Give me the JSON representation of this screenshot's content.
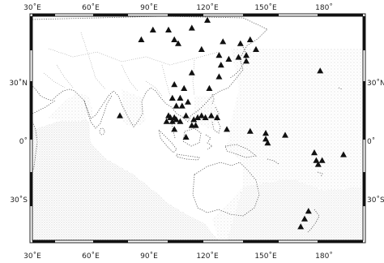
{
  "map": {
    "projection": "equirectangular",
    "extent": {
      "lon": [
        30,
        200
      ],
      "lat": [
        -60,
        55
      ]
    },
    "longitude_ticks": [
      "30˚E",
      "60˚E",
      "90˚E",
      "120˚E",
      "150˚E",
      "180˚"
    ],
    "longitude_ticks_top": [
      "30˚E",
      "60˚E",
      "90˚E",
      "120˚E",
      "150˚E",
      "180˚"
    ],
    "latitude_ticks_left": [
      "30˚N",
      "0˚",
      "30˚S"
    ],
    "latitude_ticks_right": [
      "30˚N",
      "0˚",
      "30˚S"
    ],
    "marker_symbol": "filled-triangle",
    "marker_color": "#111111",
    "stations": [
      {
        "lon": 92,
        "lat": 48
      },
      {
        "lon": 100,
        "lat": 48
      },
      {
        "lon": 112,
        "lat": 49
      },
      {
        "lon": 120,
        "lat": 53
      },
      {
        "lon": 86,
        "lat": 43
      },
      {
        "lon": 103,
        "lat": 43
      },
      {
        "lon": 105,
        "lat": 41
      },
      {
        "lon": 117,
        "lat": 38
      },
      {
        "lon": 128,
        "lat": 42
      },
      {
        "lon": 137,
        "lat": 41
      },
      {
        "lon": 142,
        "lat": 43
      },
      {
        "lon": 145,
        "lat": 38
      },
      {
        "lon": 126,
        "lat": 35
      },
      {
        "lon": 131,
        "lat": 33
      },
      {
        "lon": 136,
        "lat": 34
      },
      {
        "lon": 140,
        "lat": 35
      },
      {
        "lon": 127,
        "lat": 30
      },
      {
        "lon": 140,
        "lat": 32
      },
      {
        "lon": 126,
        "lat": 24
      },
      {
        "lon": 112,
        "lat": 26
      },
      {
        "lon": 103,
        "lat": 20
      },
      {
        "lon": 108,
        "lat": 18
      },
      {
        "lon": 121,
        "lat": 18
      },
      {
        "lon": 102,
        "lat": 13
      },
      {
        "lon": 106,
        "lat": 13
      },
      {
        "lon": 104,
        "lat": 9
      },
      {
        "lon": 107,
        "lat": 9
      },
      {
        "lon": 110,
        "lat": 11
      },
      {
        "lon": 100,
        "lat": 4
      },
      {
        "lon": 101,
        "lat": 3
      },
      {
        "lon": 103,
        "lat": 3
      },
      {
        "lon": 104,
        "lat": 2
      },
      {
        "lon": 102,
        "lat": 1
      },
      {
        "lon": 99,
        "lat": 1
      },
      {
        "lon": 106,
        "lat": 1
      },
      {
        "lon": 109,
        "lat": 4
      },
      {
        "lon": 113,
        "lat": 2
      },
      {
        "lon": 115,
        "lat": 3
      },
      {
        "lon": 117,
        "lat": 4
      },
      {
        "lon": 119,
        "lat": 3
      },
      {
        "lon": 122,
        "lat": 4
      },
      {
        "lon": 125,
        "lat": 3
      },
      {
        "lon": 103,
        "lat": -3
      },
      {
        "lon": 112,
        "lat": -1
      },
      {
        "lon": 114,
        "lat": -1
      },
      {
        "lon": 109,
        "lat": -7
      },
      {
        "lon": 130,
        "lat": -3
      },
      {
        "lon": 142,
        "lat": -4
      },
      {
        "lon": 150,
        "lat": -5
      },
      {
        "lon": 150,
        "lat": -8
      },
      {
        "lon": 151,
        "lat": -10
      },
      {
        "lon": 160,
        "lat": -6
      },
      {
        "lon": 75,
        "lat": 4
      },
      {
        "lon": 178,
        "lat": 27
      },
      {
        "lon": 175,
        "lat": -15
      },
      {
        "lon": 176,
        "lat": -19
      },
      {
        "lon": 177,
        "lat": -21
      },
      {
        "lon": 179,
        "lat": -19
      },
      {
        "lon": 190,
        "lat": -16
      },
      {
        "lon": 172,
        "lat": -45
      },
      {
        "lon": 170,
        "lat": -49
      },
      {
        "lon": 168,
        "lat": -53
      }
    ]
  }
}
